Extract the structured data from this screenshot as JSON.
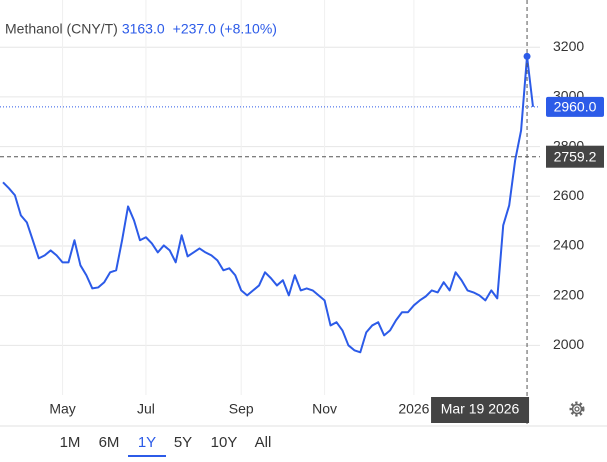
{
  "chart_data": {
    "type": "line",
    "title": "Methanol (CNY/T)",
    "hover": {
      "value": 3163,
      "label": "3163.0"
    },
    "change": "+237.0 (+8.10%)",
    "last_value": {
      "value": 2960,
      "label": "2960.0"
    },
    "crosshair_level": {
      "value": 2759.2,
      "label": "2759.2"
    },
    "crosshair_date": "Mar 19 2026",
    "categories": [
      null,
      null,
      null,
      null,
      null,
      null,
      null,
      null,
      null,
      null,
      "May",
      null,
      null,
      null,
      null,
      null,
      null,
      null,
      null,
      null,
      null,
      null,
      null,
      null,
      "Jul",
      null,
      null,
      null,
      null,
      null,
      null,
      null,
      null,
      null,
      null,
      null,
      null,
      null,
      null,
      null,
      "Sep",
      null,
      null,
      null,
      null,
      null,
      null,
      null,
      null,
      null,
      null,
      null,
      null,
      null,
      "Nov",
      null,
      null,
      null,
      null,
      null,
      null,
      null,
      null,
      null,
      null,
      null,
      null,
      null,
      null,
      "2026",
      null,
      null,
      null,
      null,
      null,
      null,
      null,
      null,
      null,
      null,
      null,
      null,
      null,
      null,
      null,
      null,
      null,
      null,
      null,
      null
    ],
    "series": [
      {
        "color": "#2c5be8",
        "values": [
          2656,
          2632,
          2604,
          2523,
          2495,
          2423,
          2350,
          2362,
          2382,
          2362,
          2334,
          2334,
          2423,
          2322,
          2282,
          2229,
          2233,
          2254,
          2294,
          2302,
          2423,
          2559,
          2503,
          2423,
          2435,
          2410,
          2374,
          2402,
          2382,
          2334,
          2443,
          2358,
          2374,
          2390,
          2374,
          2362,
          2342,
          2302,
          2310,
          2282,
          2221,
          2201,
          2221,
          2241,
          2294,
          2270,
          2241,
          2262,
          2201,
          2282,
          2221,
          2229,
          2221,
          2201,
          2181,
          2080,
          2093,
          2060,
          2000,
          1980,
          1972,
          2052,
          2080,
          2093,
          2040,
          2060,
          2101,
          2133,
          2133,
          2161,
          2181,
          2197,
          2221,
          2213,
          2254,
          2221,
          2294,
          2262,
          2221,
          2213,
          2201,
          2181,
          2221,
          2189,
          2483,
          2563,
          2744,
          2865,
          3163,
          2960
        ]
      }
    ],
    "ylim": [
      1800,
      3390
    ],
    "yticks": [
      2000,
      2200,
      2400,
      2600,
      2800,
      3000,
      3200
    ],
    "grid": true,
    "ranges": [
      "1M",
      "6M",
      "1Y",
      "5Y",
      "10Y",
      "All"
    ],
    "selected_range": "1Y"
  }
}
